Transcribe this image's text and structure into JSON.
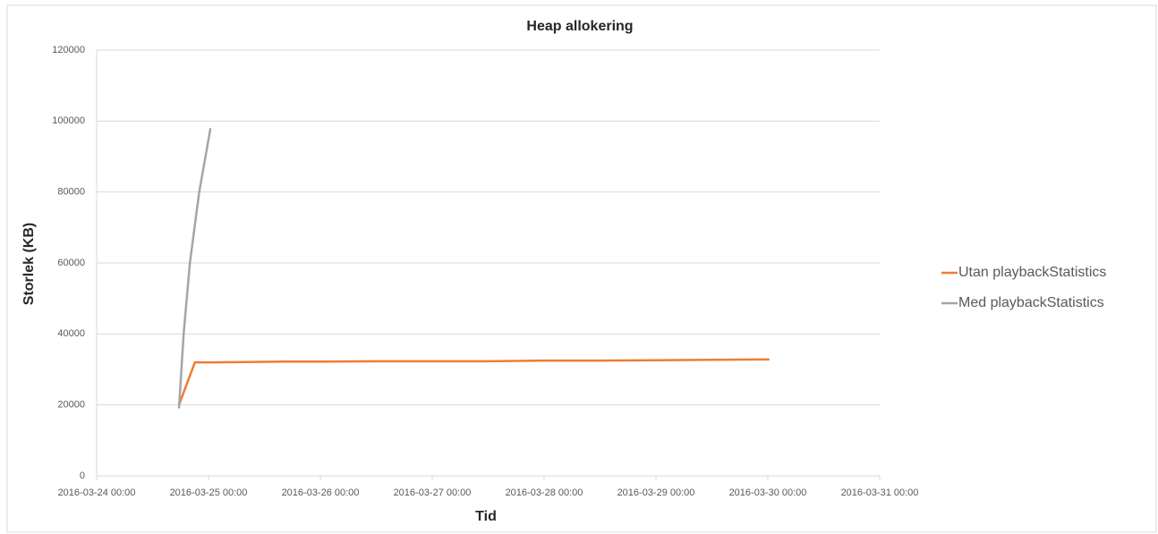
{
  "chart_data": {
    "type": "line",
    "title": "Heap allokering",
    "xlabel": "Tid",
    "ylabel": "Storlek (KB)",
    "xlim": [
      "2016-03-24 00:00",
      "2016-03-31 00:00"
    ],
    "xticks": [
      "2016-03-24 00:00",
      "2016-03-25 00:00",
      "2016-03-26 00:00",
      "2016-03-27 00:00",
      "2016-03-28 00:00",
      "2016-03-29 00:00",
      "2016-03-30 00:00",
      "2016-03-31 00:00"
    ],
    "ylim": [
      0,
      120000
    ],
    "yticks": [
      0,
      20000,
      40000,
      60000,
      80000,
      100000,
      120000
    ],
    "grid": true,
    "legend": "right",
    "series": [
      {
        "name": "Utan playbackStatistics",
        "color": "#ed7d31",
        "x": [
          "2016-03-24 17:40",
          "2016-03-24 21:05",
          "2016-03-25 01:20",
          "2016-03-25 08:00",
          "2016-03-25 16:00",
          "2016-03-26 00:00",
          "2016-03-26 12:00",
          "2016-03-27 00:00",
          "2016-03-27 12:00",
          "2016-03-28 00:00",
          "2016-03-28 12:00",
          "2016-03-29 00:00",
          "2016-03-29 12:00",
          "2016-03-29 22:00",
          "2016-03-30 00:20"
        ],
        "values": [
          20000,
          32000,
          32000,
          32100,
          32200,
          32200,
          32300,
          32300,
          32300,
          32500,
          32500,
          32600,
          32700,
          32800,
          32800
        ]
      },
      {
        "name": "Med playbackStatistics",
        "color": "#a5a5a5",
        "x": [
          "2016-03-24 17:40",
          "2016-03-24 18:40",
          "2016-03-24 20:00",
          "2016-03-24 22:00",
          "2016-03-25 00:25"
        ],
        "values": [
          19000,
          40000,
          60000,
          80000,
          98000
        ]
      }
    ]
  }
}
